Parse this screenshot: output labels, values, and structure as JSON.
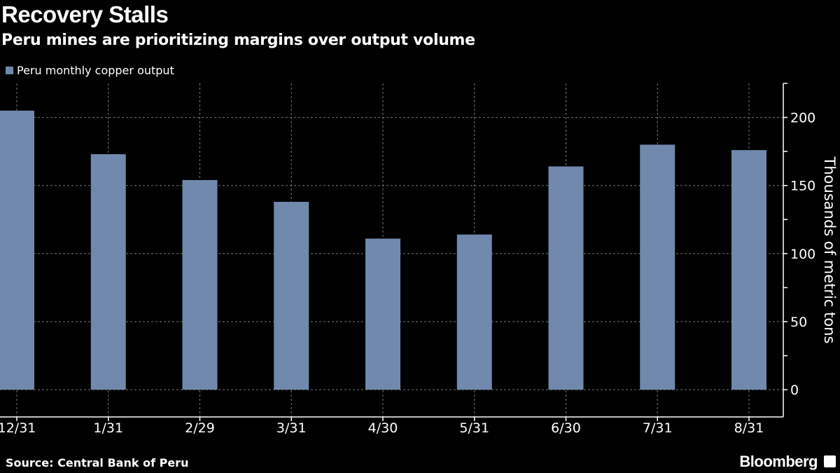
{
  "chart_data": {
    "type": "bar",
    "title": "Recovery Stalls",
    "subtitle": "Peru mines are prioritizing margins over output volume",
    "categories": [
      "12/31",
      "1/31",
      "2/29",
      "3/31",
      "4/30",
      "5/31",
      "6/30",
      "7/31",
      "8/31"
    ],
    "series": [
      {
        "name": "Peru monthly copper output",
        "values": [
          205,
          173,
          154,
          138,
          111,
          114,
          164,
          180,
          176
        ],
        "color": "#7089ad"
      }
    ],
    "xlabel": "",
    "ylabel": "Thousands of metric tons",
    "ylim": [
      -20,
      225
    ],
    "yticks": [
      0,
      50,
      100,
      150,
      200
    ],
    "y_axis_position": "right",
    "grid": true,
    "legend": "top-left",
    "source": "Source: Central Bank of Peru"
  },
  "branding": {
    "name": "Bloomberg"
  }
}
